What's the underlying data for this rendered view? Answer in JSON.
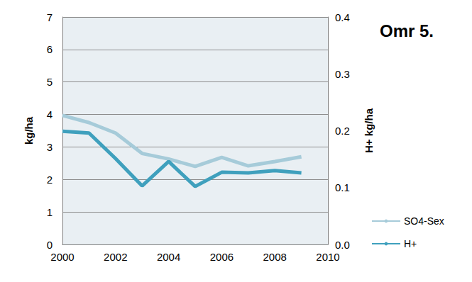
{
  "chart_data": {
    "type": "line",
    "title": "Omr 5.",
    "ylabel": "kg/ha",
    "y2label": "H+ kg/ha",
    "x": [
      2000,
      2001,
      2002,
      2003,
      2004,
      2005,
      2006,
      2007,
      2008,
      2009
    ],
    "series": [
      {
        "name": "SO4-Sex",
        "color": "#a6cbd9",
        "values": [
          3.97,
          3.75,
          3.43,
          2.8,
          2.63,
          2.4,
          2.68,
          2.42,
          2.55,
          2.7
        ]
      },
      {
        "name": "H+",
        "color": "#3fa0bd",
        "axis": "y2",
        "values": [
          0.199,
          0.196,
          0.151,
          0.103,
          0.146,
          0.102,
          0.127,
          0.126,
          0.13,
          0.126
        ]
      }
    ],
    "xlim": [
      2000,
      2010
    ],
    "xticks": [
      2000,
      2002,
      2004,
      2006,
      2008,
      2010
    ],
    "ylim": [
      0,
      7
    ],
    "yticks": [
      0,
      1,
      2,
      3,
      4,
      5,
      6,
      7
    ],
    "y2lim": [
      0,
      0.4
    ],
    "y2ticks": [
      {
        "value": 0,
        "label": "0.0"
      },
      0.1,
      0.2,
      0.3,
      0.4
    ],
    "grid": true,
    "legend": "bottom right"
  }
}
